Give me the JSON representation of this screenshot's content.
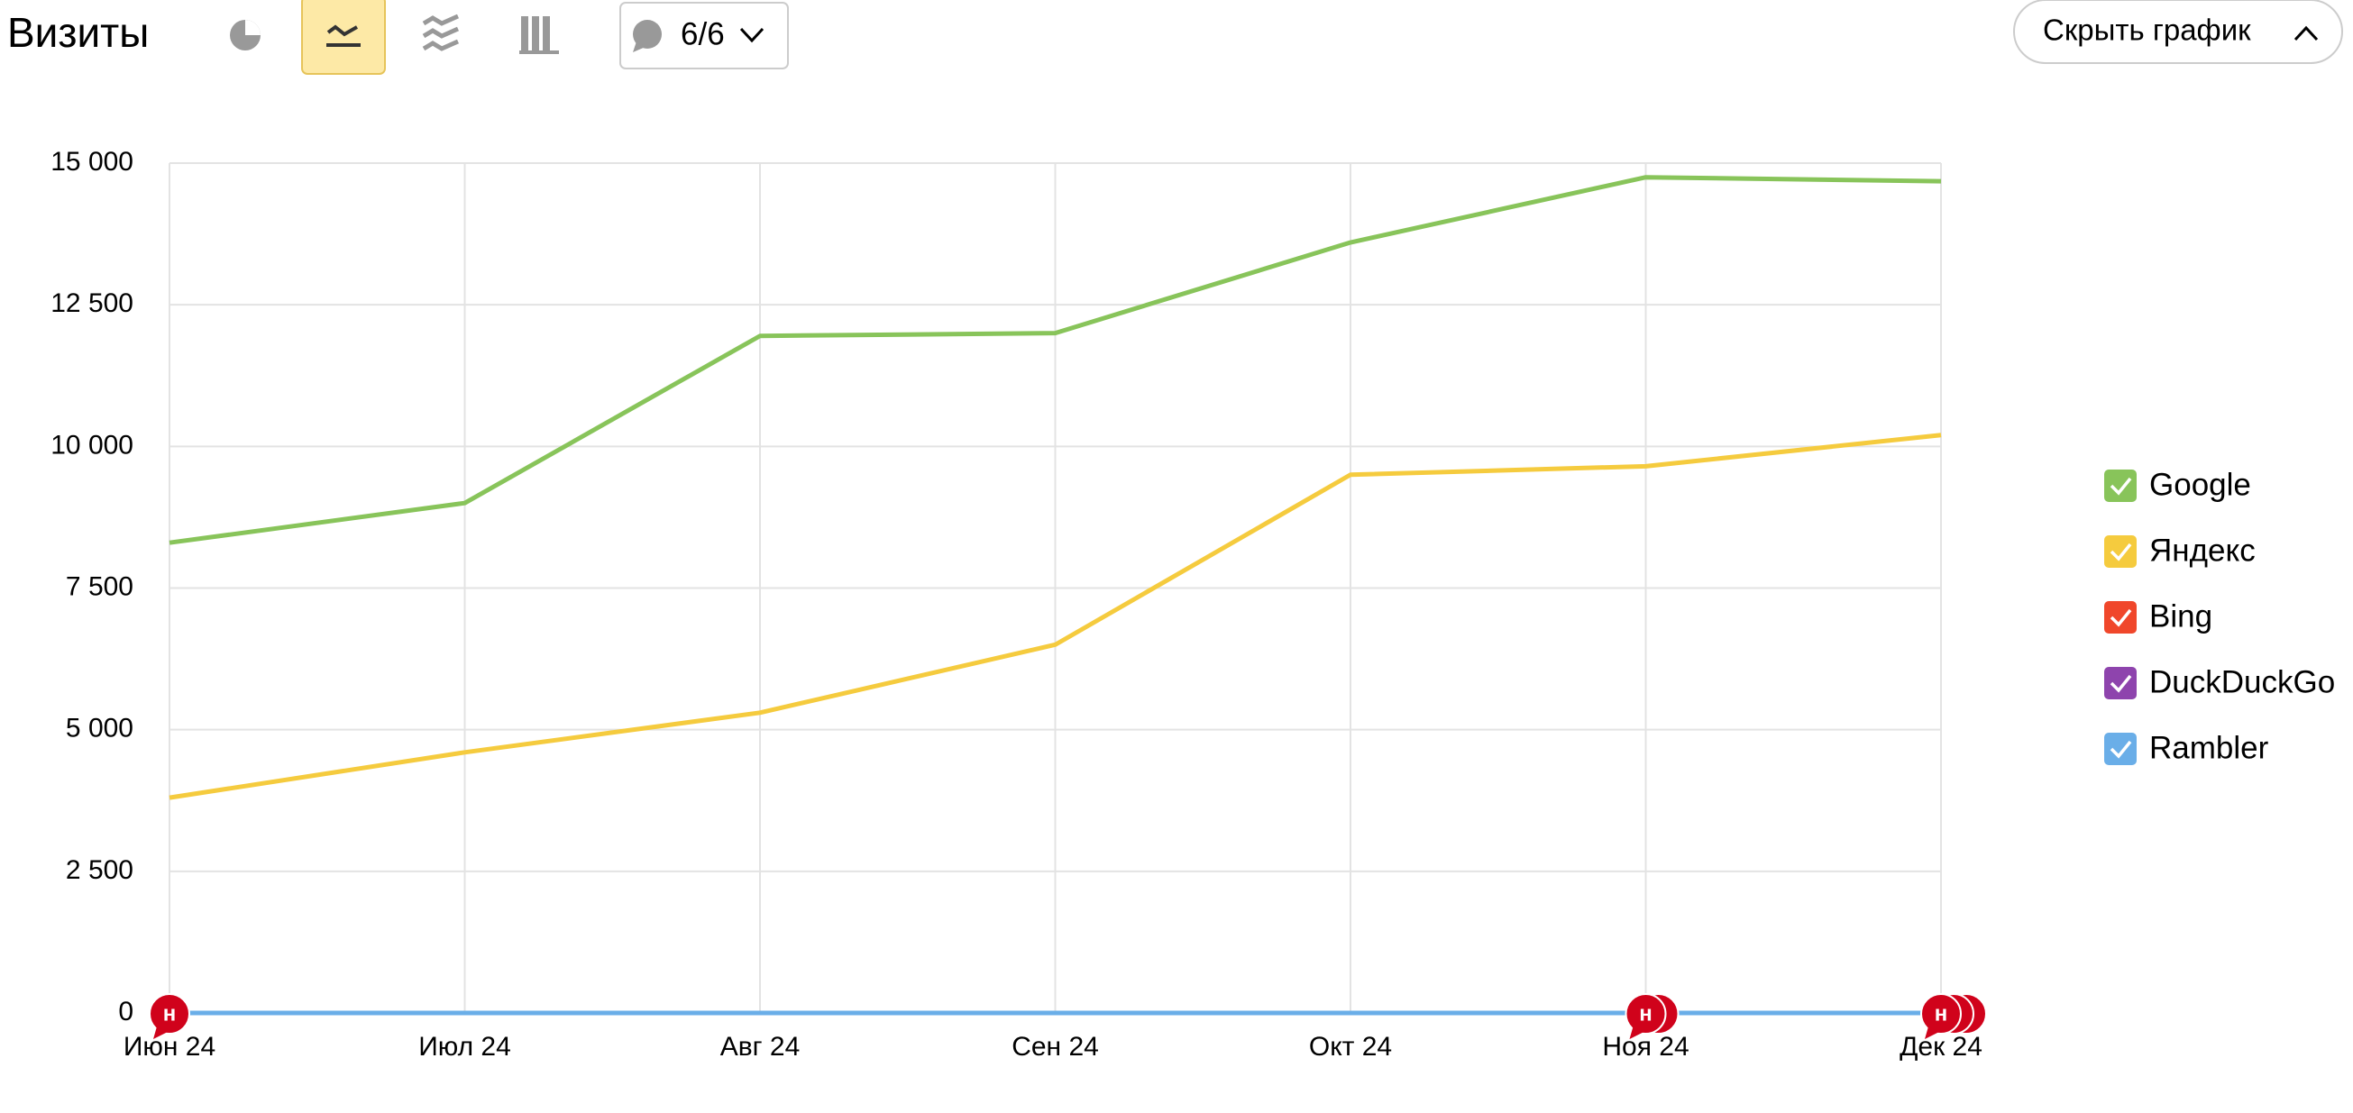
{
  "chart_data": {
    "type": "line",
    "title": "Визиты",
    "filter_label": "6/6",
    "hide_button": "Скрыть график",
    "categories": [
      "Июн 24",
      "Июл 24",
      "Авг 24",
      "Сен 24",
      "Окт 24",
      "Ноя 24",
      "Дек 24"
    ],
    "series": [
      {
        "name": "Google",
        "color": "#88c45a",
        "values": [
          8300,
          9000,
          11950,
          12000,
          13600,
          14750,
          14680
        ]
      },
      {
        "name": "Яндекс",
        "color": "#f5cb3e",
        "values": [
          3800,
          4600,
          5300,
          6500,
          9500,
          9650,
          10200
        ]
      },
      {
        "name": "Bing",
        "color": "#f0472b",
        "values": [
          0,
          0,
          0,
          0,
          0,
          0,
          0
        ]
      },
      {
        "name": "DuckDuckGo",
        "color": "#8e44ad",
        "values": [
          0,
          0,
          0,
          0,
          0,
          0,
          0
        ]
      },
      {
        "name": "Rambler",
        "color": "#6aaee8",
        "values": [
          0,
          0,
          0,
          0,
          0,
          0,
          0
        ]
      }
    ],
    "ylim": [
      0,
      15000
    ],
    "yticks": [
      0,
      {
        "value": 2500,
        "label": "2 500"
      },
      {
        "value": 5000,
        "label": "5 000"
      },
      {
        "value": 7500,
        "label": "7 500"
      },
      {
        "value": 10000,
        "label": "10 000"
      },
      {
        "value": 12500,
        "label": "12 500"
      },
      {
        "value": 15000,
        "label": "15 000"
      }
    ],
    "grid": true,
    "legend": "right",
    "annotations": [
      {
        "at": "Июн 24",
        "label": "н",
        "count": 1
      },
      {
        "at": "Ноя 24",
        "label": "н",
        "count": 2
      },
      {
        "at": "Дек 24",
        "label": "н",
        "count": 3
      }
    ]
  }
}
